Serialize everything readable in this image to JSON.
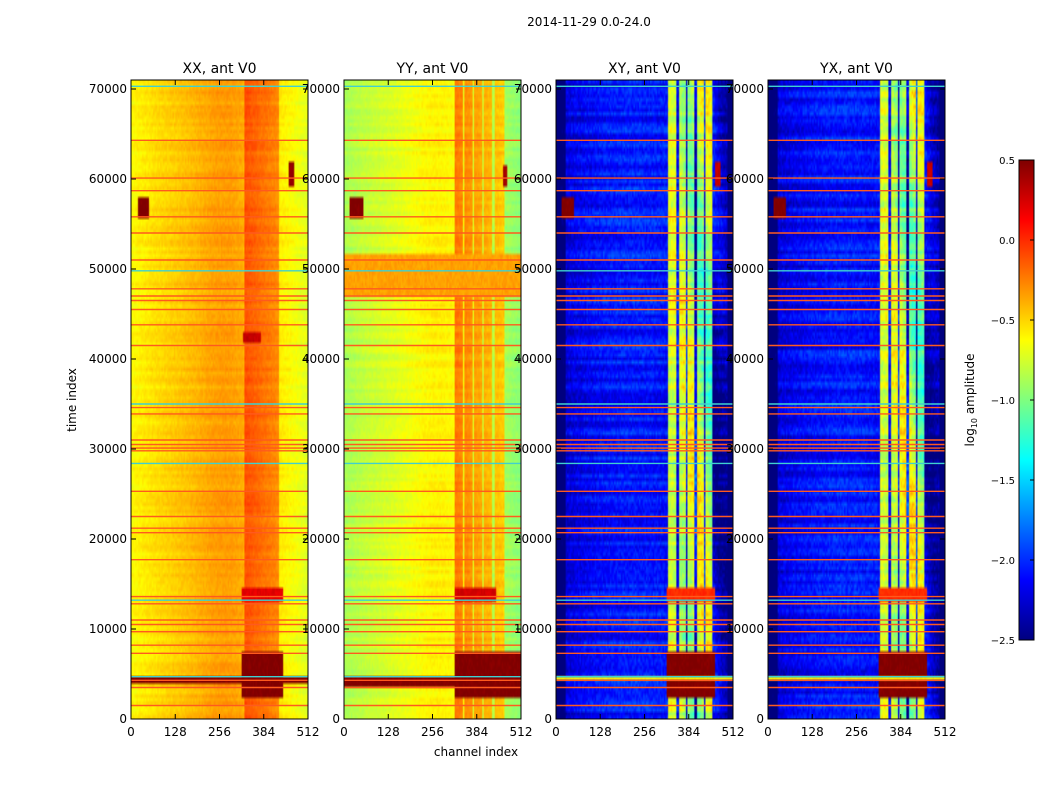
{
  "figure": {
    "suptitle": "2014-11-29 0.0-24.0",
    "xlabel": "channel index",
    "ylabel": "time index"
  },
  "colors": {
    "jet_stops": [
      "#00007f",
      "#0000ff",
      "#007fff",
      "#00ffff",
      "#7fff7f",
      "#ffff00",
      "#ff7f00",
      "#ff0000",
      "#7f0000"
    ],
    "flag_line": "#ff5a1e",
    "cyan_line": "#3fd0d0"
  },
  "chart_data": {
    "type": "heatmap",
    "xlim": [
      0,
      512
    ],
    "ylim": [
      0,
      71000
    ],
    "xticks": [
      0,
      128,
      256,
      384,
      512
    ],
    "yticks": [
      0,
      10000,
      20000,
      30000,
      40000,
      50000,
      60000,
      70000
    ],
    "colorbar": {
      "label": "log10 amplitude",
      "label_main": "log",
      "label_sub": "10",
      "label_rest": " amplitude",
      "min": -2.5,
      "max": 0.5,
      "ticks": [
        -2.5,
        -2.0,
        -1.5,
        -1.0,
        -0.5,
        0.0,
        0.5
      ],
      "tick_labels": [
        "−2.5",
        "−2.0",
        "−1.5",
        "−1.0",
        "−0.5",
        "0.0",
        "0.5"
      ]
    },
    "flagged_rows": [
      1500,
      3500,
      4300,
      4700,
      7300,
      8200,
      9700,
      10500,
      11000,
      12800,
      13200,
      13600,
      17700,
      20700,
      21200,
      22500,
      25300,
      28400,
      29800,
      30100,
      30500,
      31000,
      33900,
      34600,
      35000,
      41500,
      43800,
      45500,
      46500,
      47000,
      47800,
      49800,
      51000,
      54000,
      55800,
      58700,
      60100,
      64300,
      70300
    ],
    "panels": [
      {
        "title": "XX, ant V0",
        "base": -0.45,
        "edge_drop": 0.22,
        "center_bump": 0.12,
        "band_boost": 0.28,
        "noise": 0.08,
        "streaks": false,
        "bands": [
          [
            330,
            352
          ],
          [
            352,
            372
          ],
          [
            372,
            395
          ],
          [
            395,
            412
          ],
          [
            412,
            430
          ]
        ],
        "events": [
          {
            "t0": 2500,
            "t1": 7500,
            "c0": 320,
            "c1": 440,
            "value": 0.5
          },
          {
            "t0": 13000,
            "t1": 14500,
            "c0": 320,
            "c1": 440,
            "value": 0.2
          },
          {
            "t0": 55500,
            "t1": 58000,
            "c0": 20,
            "c1": 50,
            "value": 0.5
          },
          {
            "t0": 59000,
            "t1": 62000,
            "c0": 455,
            "c1": 470,
            "value": 0.45
          },
          {
            "t0": 42000,
            "t1": 42800,
            "c0": 325,
            "c1": 375,
            "value": 0.3
          },
          {
            "t0": 4000,
            "t1": 4900,
            "c0": 0,
            "c1": 512,
            "value": 0.5
          }
        ]
      },
      {
        "title": "YY, ant V0",
        "base": -0.7,
        "edge_drop": 0.22,
        "center_bump": 0.12,
        "band_boost": 0.4,
        "noise": 0.08,
        "streaks": false,
        "bands": [
          [
            322,
            345
          ],
          [
            350,
            372
          ],
          [
            378,
            400
          ],
          [
            405,
            430
          ],
          [
            435,
            465
          ]
        ],
        "events": [
          {
            "t0": 2500,
            "t1": 7500,
            "c0": 320,
            "c1": 512,
            "value": 0.5
          },
          {
            "t0": 13000,
            "t1": 14500,
            "c0": 320,
            "c1": 440,
            "value": 0.25
          },
          {
            "t0": 55500,
            "t1": 57800,
            "c0": 15,
            "c1": 55,
            "value": 0.5
          },
          {
            "t0": 59000,
            "t1": 61500,
            "c0": 460,
            "c1": 472,
            "value": 0.4
          },
          {
            "t0": 3600,
            "t1": 4900,
            "c0": 0,
            "c1": 512,
            "value": 0.5
          },
          {
            "t0": 47000,
            "t1": 51500,
            "c0": 0,
            "c1": 512,
            "value": -0.35
          }
        ]
      },
      {
        "title": "XY, ant V0",
        "base": -2.05,
        "edge_drop": 0.3,
        "center_bump": 0.0,
        "band_boost": 1.35,
        "noise": 0.22,
        "streaks": true,
        "bands": [
          [
            325,
            350
          ],
          [
            355,
            378
          ],
          [
            382,
            402
          ],
          [
            408,
            428
          ],
          [
            432,
            452
          ]
        ],
        "events": [
          {
            "t0": 2500,
            "t1": 7500,
            "c0": 320,
            "c1": 460,
            "value": 0.5
          },
          {
            "t0": 13000,
            "t1": 14500,
            "c0": 320,
            "c1": 460,
            "value": 0.0
          },
          {
            "t0": 55500,
            "t1": 58000,
            "c0": 15,
            "c1": 50,
            "value": 0.5
          },
          {
            "t0": 59000,
            "t1": 62000,
            "c0": 460,
            "c1": 475,
            "value": 0.3
          },
          {
            "t0": 4200,
            "t1": 4600,
            "c0": 0,
            "c1": 512,
            "value": -0.6
          }
        ]
      },
      {
        "title": "YX, ant V0",
        "base": -2.05,
        "edge_drop": 0.3,
        "center_bump": 0.0,
        "band_boost": 1.35,
        "noise": 0.22,
        "streaks": true,
        "bands": [
          [
            325,
            350
          ],
          [
            355,
            378
          ],
          [
            382,
            402
          ],
          [
            408,
            428
          ],
          [
            432,
            452
          ]
        ],
        "events": [
          {
            "t0": 2500,
            "t1": 7500,
            "c0": 320,
            "c1": 460,
            "value": 0.5
          },
          {
            "t0": 13000,
            "t1": 14500,
            "c0": 320,
            "c1": 460,
            "value": 0.0
          },
          {
            "t0": 55500,
            "t1": 58000,
            "c0": 15,
            "c1": 50,
            "value": 0.5
          },
          {
            "t0": 59000,
            "t1": 62000,
            "c0": 460,
            "c1": 475,
            "value": 0.3
          },
          {
            "t0": 4200,
            "t1": 4600,
            "c0": 0,
            "c1": 512,
            "value": -0.6
          }
        ]
      }
    ]
  }
}
